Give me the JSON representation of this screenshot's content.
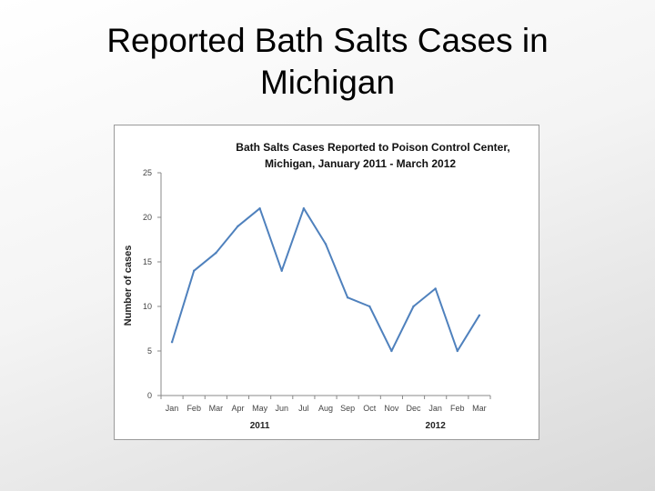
{
  "slide": {
    "title_line1": "Reported Bath Salts Cases in",
    "title_line2": "Michigan"
  },
  "chart_data": {
    "type": "line",
    "title_line1": "Bath Salts Cases Reported to Poison Control Center,",
    "title_line2": "Michigan, January 2011 - March 2012",
    "xlabel": "",
    "ylabel": "Number of cases",
    "ylim": [
      0,
      25
    ],
    "yticks": [
      0,
      5,
      10,
      15,
      20,
      25
    ],
    "categories": [
      "Jan",
      "Feb",
      "Mar",
      "Apr",
      "May",
      "Jun",
      "Jul",
      "Aug",
      "Sep",
      "Oct",
      "Nov",
      "Dec",
      "Jan",
      "Feb",
      "Mar"
    ],
    "year_labels": [
      {
        "label": "2011",
        "category_index": 4
      },
      {
        "label": "2012",
        "category_index": 12
      }
    ],
    "series": [
      {
        "values": [
          6,
          14,
          16,
          19,
          21,
          14,
          21,
          17,
          11,
          10,
          5,
          10,
          12,
          5,
          9
        ]
      }
    ],
    "line_color": "#4f81bd",
    "grid": false,
    "legend": "none"
  }
}
